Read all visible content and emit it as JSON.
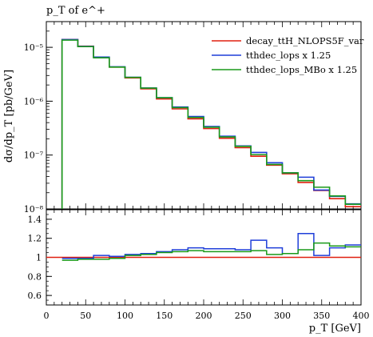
{
  "chart_data": [
    {
      "type": "line",
      "subtype": "histogram-step",
      "title": "p_T of e^+",
      "xlabel": "p_T [GeV]",
      "ylabel": "dσ/dp_T [pb/GeV]",
      "yscale": "log",
      "xlim": [
        0,
        400
      ],
      "ylim": [
        1e-08,
        3e-05
      ],
      "grid": false,
      "legend_position": "top-right",
      "bin_edges": [
        20,
        40,
        60,
        80,
        100,
        120,
        140,
        160,
        180,
        200,
        220,
        240,
        260,
        280,
        300,
        320,
        340,
        360,
        380,
        400
      ],
      "series": [
        {
          "name": "decay_ttH_NLOPS5F_var",
          "color": "#e02010",
          "values": [
            1.4e-05,
            1.05e-05,
            6.5e-06,
            4.3e-06,
            2.7e-06,
            1.7e-06,
            1.1e-06,
            7.2e-07,
            4.7e-07,
            3.1e-07,
            2.05e-07,
            1.37e-07,
            9.5e-08,
            6.5e-08,
            4.5e-08,
            3.1e-08,
            2.2e-08,
            1.55e-08,
            1.1e-08
          ]
        },
        {
          "name": "tthdec_lops x 1.25",
          "color": "#1f3fd9",
          "values": [
            1.39e-05,
            1.04e-05,
            6.6e-06,
            4.35e-06,
            2.78e-06,
            1.76e-06,
            1.16e-06,
            7.8e-07,
            5.2e-07,
            3.38e-07,
            2.24e-07,
            1.48e-07,
            1.12e-07,
            7.2e-08,
            4.68e-08,
            3.88e-08,
            2.24e-08,
            1.71e-08,
            1.24e-08
          ]
        },
        {
          "name": "tthdec_lops_MBo x 1.25",
          "color": "#1a9a1a",
          "values": [
            1.36e-05,
            1.03e-05,
            6.4e-06,
            4.3e-06,
            2.76e-06,
            1.75e-06,
            1.16e-06,
            7.6e-07,
            5e-07,
            3.28e-07,
            2.17e-07,
            1.45e-07,
            1.02e-07,
            6.7e-08,
            4.68e-08,
            3.35e-08,
            2.53e-08,
            1.74e-08,
            1.22e-08
          ]
        }
      ]
    },
    {
      "type": "line",
      "subtype": "ratio-step",
      "xlim": [
        0,
        400
      ],
      "ylim": [
        0.5,
        1.5
      ],
      "yticks": [
        "0.6",
        "0.8",
        "1",
        "1.2",
        "1.4"
      ],
      "xticks": [
        "0",
        "50",
        "100",
        "150",
        "200",
        "250",
        "300",
        "350",
        "400"
      ],
      "reference_value": 1,
      "series": [
        {
          "name": "decay_ttH_NLOPS5F_var",
          "color": "#e02010",
          "values": [
            1,
            1,
            1,
            1,
            1,
            1,
            1,
            1,
            1,
            1,
            1,
            1,
            1,
            1,
            1,
            1,
            1,
            1,
            1
          ]
        },
        {
          "name": "tthdec_lops x 1.25",
          "color": "#1f3fd9",
          "values": [
            0.99,
            0.99,
            1.02,
            1.01,
            1.03,
            1.04,
            1.06,
            1.08,
            1.1,
            1.09,
            1.09,
            1.08,
            1.18,
            1.1,
            1.04,
            1.25,
            1.02,
            1.1,
            1.13
          ]
        },
        {
          "name": "tthdec_lops_MBo x 1.25",
          "color": "#1a9a1a",
          "values": [
            0.97,
            0.98,
            0.98,
            0.99,
            1.02,
            1.03,
            1.05,
            1.06,
            1.07,
            1.06,
            1.06,
            1.06,
            1.07,
            1.03,
            1.04,
            1.08,
            1.15,
            1.12,
            1.11
          ]
        }
      ]
    }
  ],
  "main_yticks": [
    "10⁻⁸",
    "10⁻⁷",
    "10⁻⁶",
    "10⁻⁵"
  ]
}
